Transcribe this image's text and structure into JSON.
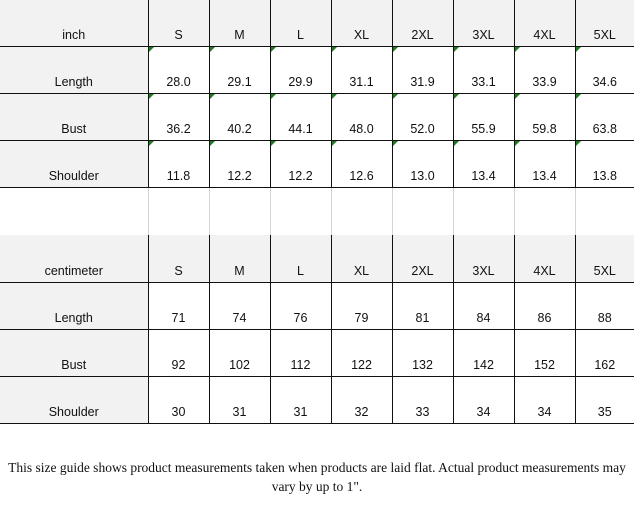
{
  "inch_table": {
    "unit": "inch",
    "sizes": [
      "S",
      "M",
      "L",
      "XL",
      "2XL",
      "3XL",
      "4XL",
      "5XL"
    ],
    "rows": [
      {
        "label": "Length",
        "values": [
          "28.0",
          "29.1",
          "29.9",
          "31.1",
          "31.9",
          "33.1",
          "33.9",
          "34.6"
        ]
      },
      {
        "label": "Bust",
        "values": [
          "36.2",
          "40.2",
          "44.1",
          "48.0",
          "52.0",
          "55.9",
          "59.8",
          "63.8"
        ]
      },
      {
        "label": "Shoulder",
        "values": [
          "11.8",
          "12.2",
          "12.2",
          "12.6",
          "13.0",
          "13.4",
          "13.4",
          "13.8"
        ]
      }
    ]
  },
  "cm_table": {
    "unit": "centimeter",
    "sizes": [
      "S",
      "M",
      "L",
      "XL",
      "2XL",
      "3XL",
      "4XL",
      "5XL"
    ],
    "rows": [
      {
        "label": "Length",
        "values": [
          "71",
          "74",
          "76",
          "79",
          "81",
          "84",
          "86",
          "88"
        ]
      },
      {
        "label": "Bust",
        "values": [
          "92",
          "102",
          "112",
          "122",
          "132",
          "142",
          "152",
          "162"
        ]
      },
      {
        "label": "Shoulder",
        "values": [
          "30",
          "31",
          "31",
          "32",
          "33",
          "34",
          "34",
          "35"
        ]
      }
    ]
  },
  "note": "This size guide shows product measurements taken when products are laid flat. Actual product measurements may vary by up to 1\".",
  "colors": {
    "header_bg": "#f2f2f2",
    "flag": "#1e7b1e"
  }
}
